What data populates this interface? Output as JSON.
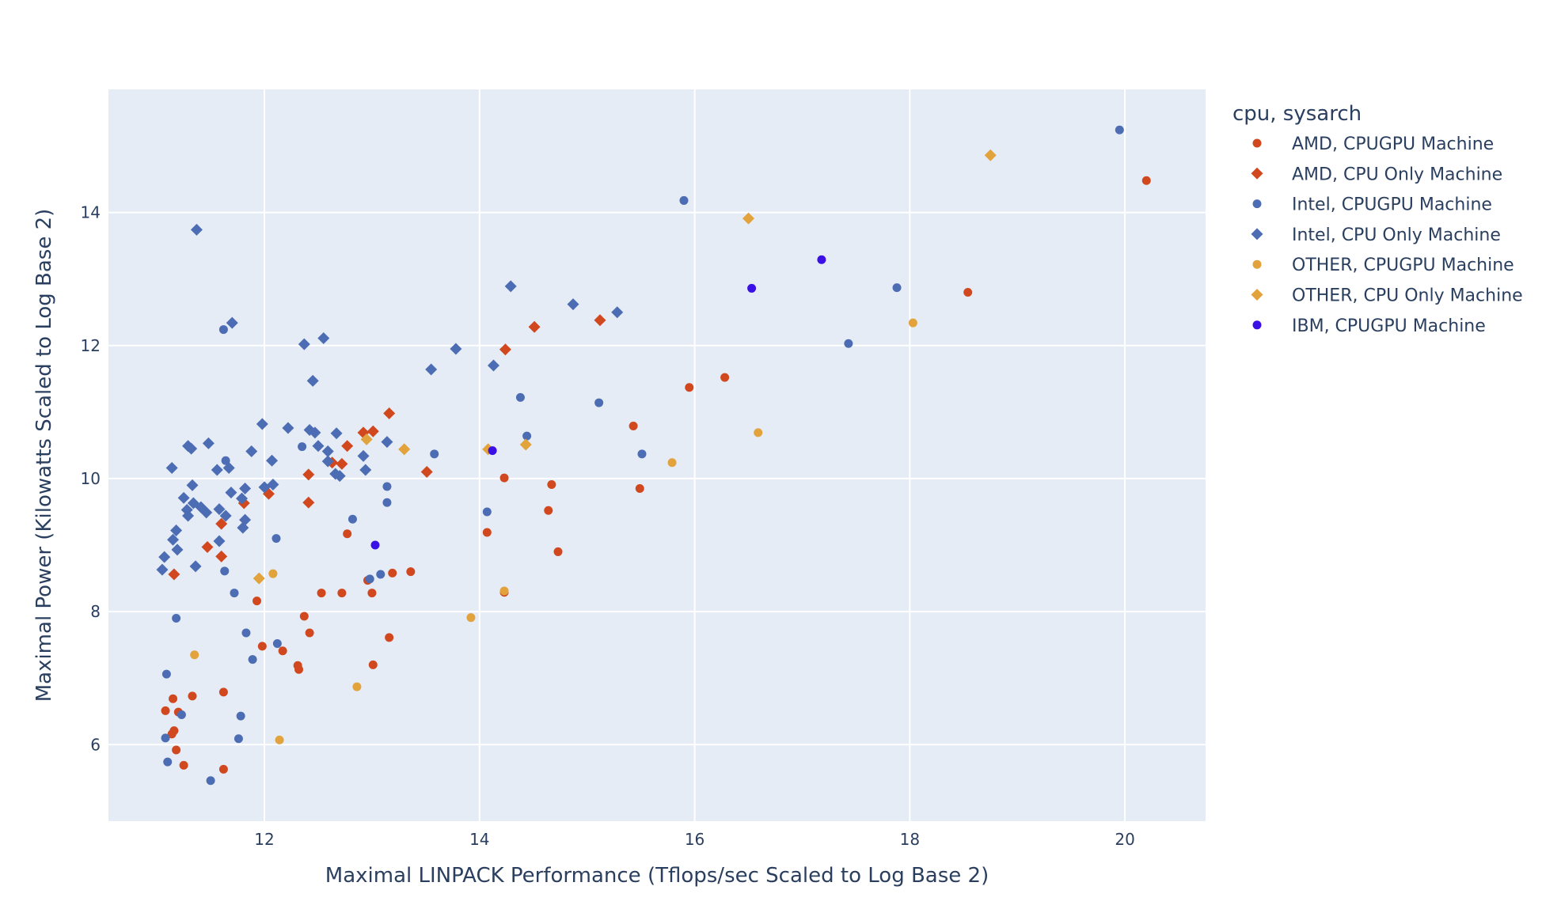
{
  "chart_data": {
    "type": "scatter",
    "xlabel": "Maximal LINPACK Performance (Tflops/sec Scaled to Log Base 2)",
    "ylabel": "Maximal Power (Kilowatts Scaled to Log Base 2)",
    "xlim": [
      10.55,
      20.75
    ],
    "ylim": [
      4.85,
      15.85
    ],
    "xticks": [
      12,
      14,
      16,
      18,
      20
    ],
    "yticks": [
      6,
      8,
      10,
      12,
      14
    ],
    "grid": true,
    "legend_title": "cpu, sysarch",
    "legend_position": "right",
    "series": [
      {
        "name": "AMD, CPUGPU Machine",
        "marker": "circle",
        "color": "#d1481f",
        "points": [
          [
            20.2,
            14.48
          ],
          [
            18.54,
            12.8
          ],
          [
            16.28,
            11.52
          ],
          [
            15.95,
            11.37
          ],
          [
            15.43,
            10.79
          ],
          [
            15.49,
            9.85
          ],
          [
            14.67,
            9.91
          ],
          [
            14.64,
            9.52
          ],
          [
            14.73,
            8.9
          ],
          [
            14.23,
            10.01
          ],
          [
            14.07,
            9.19
          ],
          [
            14.23,
            8.29
          ],
          [
            13.36,
            8.6
          ],
          [
            13.19,
            8.58
          ],
          [
            13.16,
            7.61
          ],
          [
            13.01,
            7.2
          ],
          [
            13.0,
            8.28
          ],
          [
            12.96,
            8.47
          ],
          [
            12.77,
            9.17
          ],
          [
            12.72,
            8.28
          ],
          [
            12.53,
            8.28
          ],
          [
            12.42,
            7.68
          ],
          [
            12.37,
            7.93
          ],
          [
            12.31,
            7.19
          ],
          [
            12.32,
            7.13
          ],
          [
            12.17,
            7.41
          ],
          [
            11.98,
            7.48
          ],
          [
            11.93,
            8.16
          ],
          [
            11.62,
            6.79
          ],
          [
            11.62,
            5.63
          ],
          [
            11.33,
            6.73
          ],
          [
            11.25,
            5.69
          ],
          [
            11.18,
            5.92
          ],
          [
            11.2,
            6.49
          ],
          [
            11.15,
            6.69
          ],
          [
            11.16,
            6.21
          ],
          [
            11.14,
            6.16
          ],
          [
            11.08,
            6.51
          ]
        ]
      },
      {
        "name": "AMD, CPU Only Machine",
        "marker": "diamond",
        "color": "#d1481f",
        "points": [
          [
            15.12,
            12.38
          ],
          [
            14.51,
            12.28
          ],
          [
            14.24,
            11.94
          ],
          [
            13.16,
            10.98
          ],
          [
            13.51,
            10.1
          ],
          [
            12.92,
            10.69
          ],
          [
            13.01,
            10.71
          ],
          [
            12.77,
            10.49
          ],
          [
            12.63,
            10.24
          ],
          [
            12.72,
            10.22
          ],
          [
            12.41,
            10.06
          ],
          [
            12.41,
            9.64
          ],
          [
            12.04,
            9.77
          ],
          [
            11.81,
            9.63
          ],
          [
            11.6,
            9.32
          ],
          [
            11.47,
            8.97
          ],
          [
            11.6,
            8.83
          ],
          [
            11.16,
            8.56
          ]
        ]
      },
      {
        "name": "Intel, CPUGPU Machine",
        "marker": "circle",
        "color": "#4c6db4",
        "points": [
          [
            19.95,
            15.24
          ],
          [
            17.88,
            12.87
          ],
          [
            17.43,
            12.03
          ],
          [
            15.9,
            14.18
          ],
          [
            15.11,
            11.14
          ],
          [
            15.51,
            10.37
          ],
          [
            14.38,
            11.22
          ],
          [
            14.44,
            10.64
          ],
          [
            14.07,
            9.5
          ],
          [
            13.58,
            10.37
          ],
          [
            13.14,
            9.88
          ],
          [
            13.14,
            9.64
          ],
          [
            13.08,
            8.56
          ],
          [
            12.98,
            8.49
          ],
          [
            12.82,
            9.39
          ],
          [
            12.35,
            10.48
          ],
          [
            12.11,
            9.1
          ],
          [
            12.12,
            7.52
          ],
          [
            11.89,
            7.28
          ],
          [
            11.83,
            7.68
          ],
          [
            11.78,
            6.43
          ],
          [
            11.76,
            6.09
          ],
          [
            11.72,
            8.28
          ],
          [
            11.64,
            10.27
          ],
          [
            11.63,
            8.61
          ],
          [
            11.62,
            12.24
          ],
          [
            11.18,
            7.9
          ],
          [
            11.23,
            6.45
          ],
          [
            11.09,
            7.06
          ],
          [
            11.08,
            6.1
          ],
          [
            11.1,
            5.74
          ],
          [
            11.5,
            5.46
          ]
        ]
      },
      {
        "name": "Intel, CPU Only Machine",
        "marker": "diamond",
        "color": "#4c6db4",
        "points": [
          [
            11.37,
            13.74
          ],
          [
            11.7,
            12.34
          ],
          [
            12.37,
            12.02
          ],
          [
            12.55,
            12.11
          ],
          [
            12.45,
            11.47
          ],
          [
            13.78,
            11.95
          ],
          [
            13.55,
            11.64
          ],
          [
            14.13,
            11.7
          ],
          [
            14.29,
            12.89
          ],
          [
            14.87,
            12.62
          ],
          [
            15.28,
            12.5
          ],
          [
            13.14,
            10.55
          ],
          [
            12.92,
            10.34
          ],
          [
            12.94,
            10.13
          ],
          [
            12.7,
            10.04
          ],
          [
            12.66,
            10.07
          ],
          [
            12.67,
            10.68
          ],
          [
            12.59,
            10.41
          ],
          [
            12.59,
            10.26
          ],
          [
            12.5,
            10.49
          ],
          [
            12.47,
            10.69
          ],
          [
            12.42,
            10.73
          ],
          [
            12.22,
            10.76
          ],
          [
            11.98,
            10.82
          ],
          [
            12.07,
            10.27
          ],
          [
            12.08,
            9.91
          ],
          [
            12.0,
            9.87
          ],
          [
            11.88,
            10.41
          ],
          [
            11.82,
            9.85
          ],
          [
            11.79,
            9.7
          ],
          [
            11.8,
            9.26
          ],
          [
            11.82,
            9.38
          ],
          [
            11.69,
            9.79
          ],
          [
            11.67,
            10.16
          ],
          [
            11.56,
            10.13
          ],
          [
            11.48,
            10.53
          ],
          [
            11.29,
            10.49
          ],
          [
            11.32,
            10.45
          ],
          [
            11.14,
            10.16
          ],
          [
            11.33,
            9.9
          ],
          [
            11.25,
            9.71
          ],
          [
            11.34,
            9.63
          ],
          [
            11.41,
            9.57
          ],
          [
            11.46,
            9.49
          ],
          [
            11.28,
            9.53
          ],
          [
            11.29,
            9.44
          ],
          [
            11.58,
            9.54
          ],
          [
            11.64,
            9.44
          ],
          [
            11.58,
            9.06
          ],
          [
            11.18,
            9.22
          ],
          [
            11.15,
            9.08
          ],
          [
            11.19,
            8.93
          ],
          [
            11.36,
            8.68
          ],
          [
            11.07,
            8.82
          ],
          [
            11.05,
            8.63
          ]
        ]
      },
      {
        "name": "OTHER, CPUGPU Machine",
        "marker": "circle",
        "color": "#e2a23c",
        "points": [
          [
            18.03,
            12.34
          ],
          [
            16.59,
            10.69
          ],
          [
            15.79,
            10.24
          ],
          [
            14.23,
            8.31
          ],
          [
            13.92,
            7.91
          ],
          [
            12.86,
            6.87
          ],
          [
            12.08,
            8.57
          ],
          [
            12.14,
            6.07
          ],
          [
            11.35,
            7.35
          ]
        ]
      },
      {
        "name": "OTHER, CPU Only Machine",
        "marker": "diamond",
        "color": "#e2a23c",
        "points": [
          [
            18.75,
            14.86
          ],
          [
            16.5,
            13.91
          ],
          [
            14.08,
            10.44
          ],
          [
            14.43,
            10.51
          ],
          [
            13.3,
            10.44
          ],
          [
            12.95,
            10.59
          ],
          [
            11.95,
            8.5
          ]
        ]
      },
      {
        "name": "IBM, CPUGPU Machine",
        "marker": "circle",
        "color": "#3a10e5",
        "points": [
          [
            17.18,
            13.29
          ],
          [
            16.53,
            12.86
          ],
          [
            14.12,
            10.42
          ],
          [
            13.03,
            9.0
          ]
        ]
      }
    ]
  }
}
